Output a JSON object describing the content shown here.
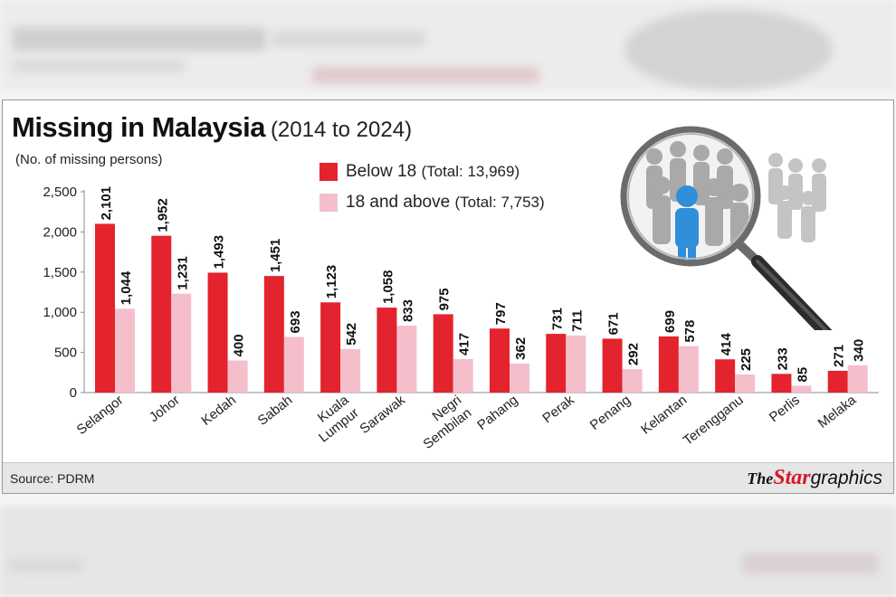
{
  "chart_data": {
    "type": "bar",
    "title": "Missing in Malaysia",
    "subtitle": "(2014 to 2024)",
    "ylabel": "(No. of missing persons)",
    "ylim": [
      0,
      2500
    ],
    "yticks": [
      0,
      500,
      1000,
      1500,
      2000,
      2500
    ],
    "ytick_labels": [
      "0",
      "500",
      "1,000",
      "1,500",
      "2,000",
      "2,500"
    ],
    "grid": false,
    "legend_position": "top-center",
    "categories": [
      "Selangor",
      "Johor",
      "Kedah",
      "Sabah",
      "Kuala Lumpur",
      "Sarawak",
      "Negri Sembilan",
      "Pahang",
      "Perak",
      "Penang",
      "Kelantan",
      "Terengganu",
      "Perlis",
      "Melaka"
    ],
    "series": [
      {
        "name": "Below 18",
        "legend_label": "Below 18",
        "legend_total": "(Total: 13,969)",
        "color": "#e3232d",
        "values": [
          2101,
          1952,
          1493,
          1451,
          1123,
          1058,
          975,
          797,
          731,
          671,
          699,
          414,
          233,
          271
        ],
        "labels": [
          "2,101",
          "1,952",
          "1,493",
          "1,451",
          "1,123",
          "1,058",
          "975",
          "797",
          "731",
          "671",
          "699",
          "414",
          "233",
          "271"
        ]
      },
      {
        "name": "18 and above",
        "legend_label": "18 and above",
        "legend_total": "(Total: 7,753)",
        "color": "#f4bfcb",
        "values": [
          1044,
          1231,
          400,
          693,
          542,
          833,
          417,
          362,
          711,
          292,
          578,
          225,
          85,
          340
        ],
        "labels": [
          "1,044",
          "1,231",
          "400",
          "693",
          "542",
          "833",
          "417",
          "362",
          "711",
          "292",
          "578",
          "225",
          "85",
          "340"
        ]
      }
    ],
    "source": "Source: PDRM"
  },
  "brand": {
    "the": "The",
    "star": "Star",
    "graphics": "graphics"
  },
  "illustration": {
    "icon": "magnifier-crowd-icon",
    "lens_color": "#555555",
    "figure_color": "#b9b9b9",
    "highlight_color": "#2f8fd8"
  },
  "colors": {
    "card_bg": "#ffffff",
    "footer_bg": "#e6e6e6",
    "text": "#111111"
  }
}
